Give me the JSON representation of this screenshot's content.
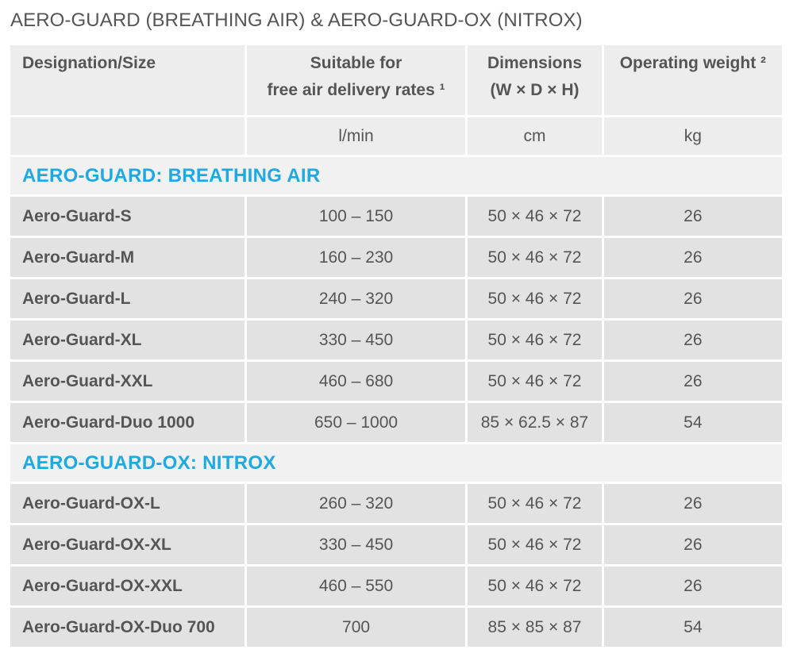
{
  "page": {
    "title": "AERO-GUARD (BREATHING AIR) & AERO-GUARD-OX (NITROX)"
  },
  "header": {
    "designation": "Designation/Size",
    "flow_line1": "Suitable for",
    "flow_line2": "free air delivery rates ¹",
    "dim_line1": "Dimensions",
    "dim_line2": "(W × D × H)",
    "weight": "Operating weight ²"
  },
  "units": {
    "designation": "",
    "flow": "l/min",
    "dimensions": "cm",
    "weight": "kg"
  },
  "colors": {
    "section_heading": "#1ea9e1",
    "header_bg": "#ededed",
    "row_bg": "#e2e2e2"
  },
  "sections": [
    {
      "heading": "AERO-GUARD: BREATHING AIR",
      "rows": [
        {
          "name": "Aero-Guard-S",
          "flow": "100 – 150",
          "dimensions": "50 × 46 × 72",
          "weight": "26"
        },
        {
          "name": "Aero-Guard-M",
          "flow": "160 – 230",
          "dimensions": "50 × 46 × 72",
          "weight": "26"
        },
        {
          "name": "Aero-Guard-L",
          "flow": "240 – 320",
          "dimensions": "50 × 46 × 72",
          "weight": "26"
        },
        {
          "name": "Aero-Guard-XL",
          "flow": "330 – 450",
          "dimensions": "50 × 46 × 72",
          "weight": "26"
        },
        {
          "name": "Aero-Guard-XXL",
          "flow": "460 – 680",
          "dimensions": "50 × 46 × 72",
          "weight": "26"
        },
        {
          "name": "Aero-Guard-Duo 1000",
          "flow": "650 – 1000",
          "dimensions": "85 × 62.5 × 87",
          "weight": "54"
        }
      ]
    },
    {
      "heading": "AERO-GUARD-OX: NITROX",
      "rows": [
        {
          "name": "Aero-Guard-OX-L",
          "flow": "260 – 320",
          "dimensions": "50 × 46 × 72",
          "weight": "26"
        },
        {
          "name": "Aero-Guard-OX-XL",
          "flow": "330 – 450",
          "dimensions": "50 × 46 × 72",
          "weight": "26"
        },
        {
          "name": "Aero-Guard-OX-XXL",
          "flow": "460 – 550",
          "dimensions": "50 × 46 × 72",
          "weight": "26"
        },
        {
          "name": "Aero-Guard-OX-Duo 700",
          "flow": "700",
          "dimensions": "85 × 85 × 87",
          "weight": "54"
        }
      ]
    }
  ]
}
